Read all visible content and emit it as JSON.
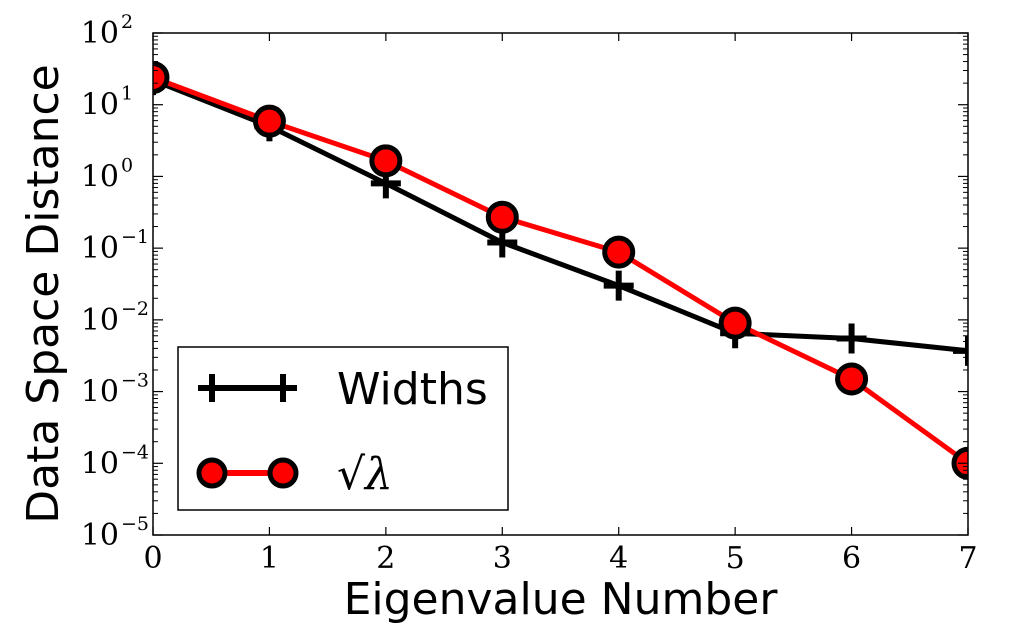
{
  "chart_data": {
    "type": "line",
    "xlabel": "Eigenvalue Number",
    "ylabel": "Data Space Distance",
    "yscale": "log",
    "xlim": [
      0,
      7
    ],
    "ylim": [
      1e-05,
      100
    ],
    "x_ticks": [
      0,
      1,
      2,
      3,
      4,
      5,
      6,
      7
    ],
    "y_ticks": [
      {
        "value": 1e-05,
        "base": "10",
        "exp": "−5"
      },
      {
        "value": 0.0001,
        "base": "10",
        "exp": "−4"
      },
      {
        "value": 0.001,
        "base": "10",
        "exp": "−3"
      },
      {
        "value": 0.01,
        "base": "10",
        "exp": "−2"
      },
      {
        "value": 0.1,
        "base": "10",
        "exp": "−1"
      },
      {
        "value": 1,
        "base": "10",
        "exp": "0"
      },
      {
        "value": 10,
        "base": "10",
        "exp": "1"
      },
      {
        "value": 100,
        "base": "10",
        "exp": "2"
      }
    ],
    "grid": false,
    "legend_position": "bottom-left",
    "series": [
      {
        "name": "Widths",
        "color": "#000000",
        "marker": "plus",
        "x": [
          0,
          1,
          2,
          3,
          4,
          5,
          6,
          7
        ],
        "y": [
          22,
          5.0,
          0.8,
          0.12,
          0.03,
          0.0065,
          0.0055,
          0.0037
        ]
      },
      {
        "name": "√λ",
        "color": "#ff0000",
        "marker": "circle",
        "x": [
          0,
          1,
          2,
          3,
          4,
          5,
          6,
          7
        ],
        "y": [
          24,
          5.9,
          1.65,
          0.27,
          0.088,
          0.009,
          0.0015,
          0.0001
        ]
      }
    ]
  }
}
